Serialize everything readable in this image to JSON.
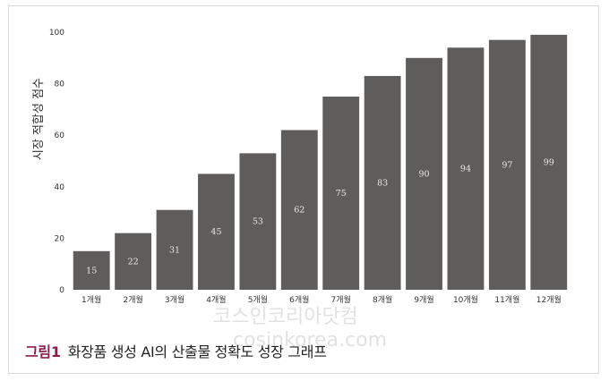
{
  "chart_data": {
    "type": "bar",
    "categories": [
      "1개월",
      "2개월",
      "3개월",
      "4개월",
      "5개월",
      "6개월",
      "7개월",
      "8개월",
      "9개월",
      "10개월",
      "11개월",
      "12개월"
    ],
    "values": [
      15,
      22,
      31,
      45,
      53,
      62,
      75,
      83,
      90,
      94,
      97,
      99
    ],
    "title": "",
    "xlabel": "",
    "ylabel": "시장 적합성 점수",
    "ylim": [
      0,
      100
    ],
    "yticks": [
      0,
      20,
      40,
      60,
      80,
      100
    ],
    "grid": false,
    "bar_color": "#5f5d5c"
  },
  "caption": {
    "number": "그림1",
    "text": "화장품 생성 AI의 산출물 정확도 성장 그래프"
  },
  "watermark": {
    "line1": "코스인코리아닷컴",
    "line2": "cosinkorea.com"
  }
}
